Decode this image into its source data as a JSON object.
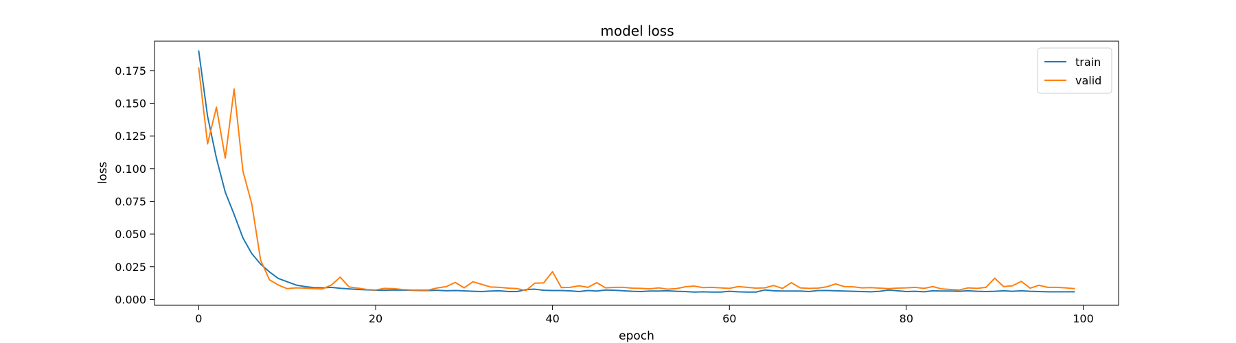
{
  "chart_data": {
    "type": "line",
    "title": "model loss",
    "xlabel": "epoch",
    "ylabel": "loss",
    "xlim": [
      -5,
      104
    ],
    "ylim": [
      -0.0045,
      0.1975
    ],
    "xticks": [
      0,
      20,
      40,
      60,
      80,
      100
    ],
    "xtick_labels": [
      "0",
      "20",
      "40",
      "60",
      "80",
      "100"
    ],
    "yticks": [
      0.0,
      0.025,
      0.05,
      0.075,
      0.1,
      0.125,
      0.15,
      0.175
    ],
    "ytick_labels": [
      "0.000",
      "0.025",
      "0.050",
      "0.075",
      "0.100",
      "0.125",
      "0.150",
      "0.175"
    ],
    "grid": false,
    "legend_position": "top-right",
    "x": [
      0,
      1,
      2,
      3,
      4,
      5,
      6,
      7,
      8,
      9,
      10,
      11,
      12,
      13,
      14,
      15,
      16,
      17,
      18,
      19,
      20,
      21,
      22,
      23,
      24,
      25,
      26,
      27,
      28,
      29,
      30,
      31,
      32,
      33,
      34,
      35,
      36,
      37,
      38,
      39,
      40,
      41,
      42,
      43,
      44,
      45,
      46,
      47,
      48,
      49,
      50,
      51,
      52,
      53,
      54,
      55,
      56,
      57,
      58,
      59,
      60,
      61,
      62,
      63,
      64,
      65,
      66,
      67,
      68,
      69,
      70,
      71,
      72,
      73,
      74,
      75,
      76,
      77,
      78,
      79,
      80,
      81,
      82,
      83,
      84,
      85,
      86,
      87,
      88,
      89,
      90,
      91,
      92,
      93,
      94,
      95,
      96,
      97,
      98,
      99
    ],
    "series": [
      {
        "name": "train",
        "color": "#1f77b4",
        "values": [
          0.19,
          0.14,
          0.108,
          0.082,
          0.065,
          0.047,
          0.035,
          0.027,
          0.021,
          0.016,
          0.0135,
          0.011,
          0.0098,
          0.009,
          0.0088,
          0.0092,
          0.0085,
          0.008,
          0.0076,
          0.0073,
          0.007,
          0.007,
          0.0072,
          0.0071,
          0.007,
          0.0068,
          0.0068,
          0.007,
          0.0066,
          0.0068,
          0.0065,
          0.0062,
          0.006,
          0.0064,
          0.0066,
          0.006,
          0.006,
          0.0075,
          0.0078,
          0.007,
          0.0068,
          0.0068,
          0.0065,
          0.006,
          0.0068,
          0.0064,
          0.0072,
          0.007,
          0.0066,
          0.0062,
          0.006,
          0.0064,
          0.0064,
          0.0066,
          0.0062,
          0.006,
          0.0056,
          0.0058,
          0.0056,
          0.0056,
          0.0062,
          0.0058,
          0.0056,
          0.0056,
          0.0072,
          0.0066,
          0.0064,
          0.0064,
          0.0064,
          0.006,
          0.0068,
          0.0068,
          0.0066,
          0.0064,
          0.0062,
          0.006,
          0.0058,
          0.0062,
          0.0072,
          0.0066,
          0.006,
          0.0062,
          0.0058,
          0.0066,
          0.0064,
          0.0064,
          0.0062,
          0.0066,
          0.0062,
          0.006,
          0.0062,
          0.0066,
          0.0062,
          0.0066,
          0.0062,
          0.006,
          0.0058,
          0.0058,
          0.0058,
          0.0058
        ]
      },
      {
        "name": "valid",
        "color": "#ff7f0e",
        "values": [
          0.177,
          0.119,
          0.147,
          0.108,
          0.161,
          0.098,
          0.073,
          0.03,
          0.015,
          0.011,
          0.0082,
          0.0088,
          0.0086,
          0.0082,
          0.008,
          0.011,
          0.017,
          0.0095,
          0.0086,
          0.0076,
          0.0072,
          0.0084,
          0.0082,
          0.0076,
          0.0072,
          0.0072,
          0.0072,
          0.0088,
          0.0098,
          0.013,
          0.0088,
          0.0135,
          0.0115,
          0.0095,
          0.0092,
          0.0086,
          0.0082,
          0.0068,
          0.0124,
          0.0126,
          0.0212,
          0.009,
          0.0092,
          0.0104,
          0.0092,
          0.0128,
          0.0088,
          0.0092,
          0.0092,
          0.0086,
          0.0084,
          0.008,
          0.0088,
          0.0078,
          0.0082,
          0.0096,
          0.0102,
          0.009,
          0.0092,
          0.0088,
          0.0084,
          0.0098,
          0.0092,
          0.0086,
          0.0088,
          0.0106,
          0.0084,
          0.0128,
          0.0088,
          0.0084,
          0.0086,
          0.0096,
          0.0118,
          0.0098,
          0.0096,
          0.0088,
          0.009,
          0.0086,
          0.0082,
          0.0086,
          0.0088,
          0.0092,
          0.0084,
          0.0098,
          0.008,
          0.0076,
          0.0072,
          0.0088,
          0.0084,
          0.0092,
          0.0162,
          0.0098,
          0.0104,
          0.0138,
          0.0086,
          0.0108,
          0.0092,
          0.0092,
          0.0088,
          0.0082
        ]
      }
    ]
  }
}
